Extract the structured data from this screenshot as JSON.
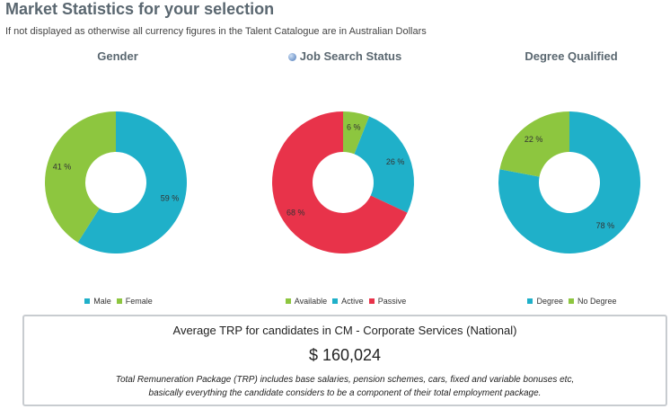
{
  "header": {
    "title": "Market Statistics for your selection",
    "subtitle": "If not displayed as otherwise all currency figures in the Talent Catalogue are in Australian Dollars"
  },
  "chart_data": [
    {
      "type": "pie",
      "donut": true,
      "title": "Gender",
      "categories": [
        "Male",
        "Female"
      ],
      "values": [
        59,
        41
      ],
      "colors": [
        "#1fb0c9",
        "#8dc63f"
      ],
      "legend": "bottom"
    },
    {
      "type": "pie",
      "donut": true,
      "title": "Job Search Status",
      "title_icon": "info-icon",
      "categories": [
        "Available",
        "Active",
        "Passive"
      ],
      "values": [
        6,
        26,
        68
      ],
      "colors": [
        "#8dc63f",
        "#1fb0c9",
        "#e8334a"
      ],
      "legend": "bottom"
    },
    {
      "type": "pie",
      "donut": true,
      "title": "Degree Qualified",
      "categories": [
        "Degree",
        "No Degree"
      ],
      "values": [
        78,
        22
      ],
      "colors": [
        "#1fb0c9",
        "#8dc63f"
      ],
      "legend": "bottom"
    }
  ],
  "trp": {
    "heading": "Average TRP for candidates in CM - Corporate Services (National)",
    "value": "$ 160,024",
    "note_line1": "Total Remuneration Package (TRP) includes base salaries, pension schemes, cars, fixed and variable bonuses etc,",
    "note_line2": "basically everything the candidate considers to be a component of their total employment package."
  }
}
